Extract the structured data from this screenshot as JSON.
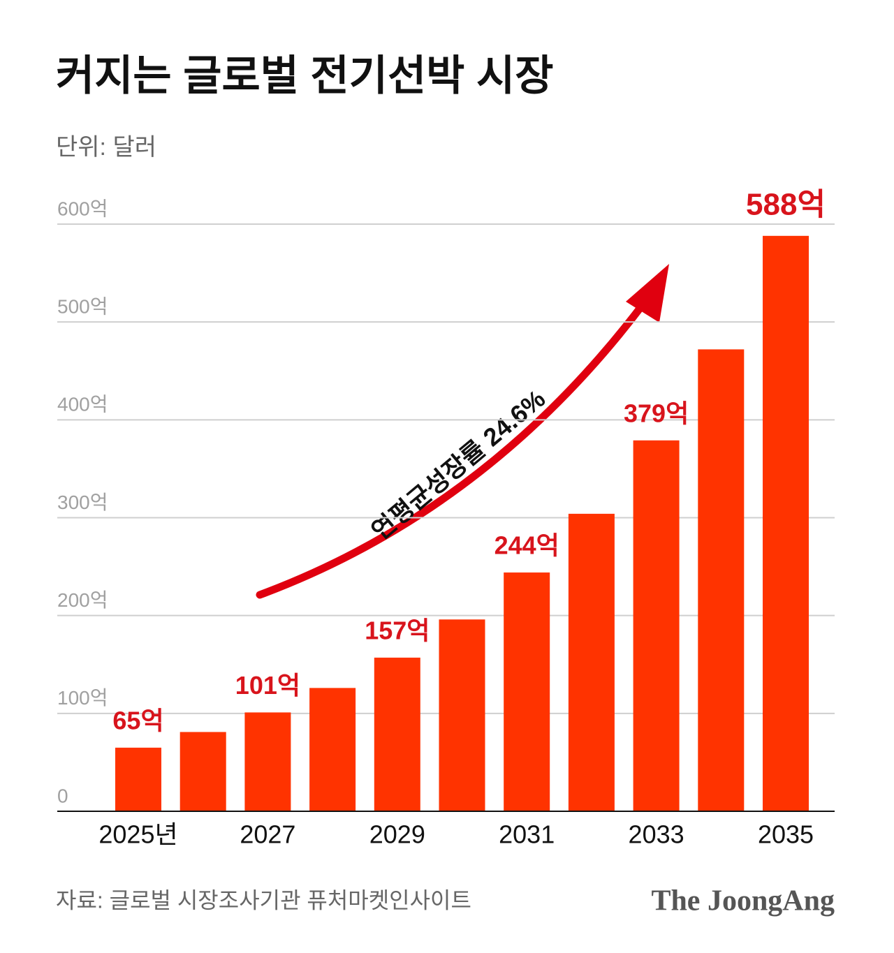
{
  "chart_data": {
    "type": "bar",
    "title": "커지는 글로벌 전기선박 시장",
    "subtitle": "단위: 달러",
    "annotation": "연평균성장률 24.6%",
    "source": "자료: 글로벌 시장조사기관 퓨처마켓인사이트",
    "brand": "The JoongAng",
    "categories": [
      "2025년",
      null,
      "2027",
      null,
      "2029",
      null,
      "2031",
      null,
      "2033",
      null,
      "2035"
    ],
    "values": [
      65,
      81,
      101,
      126,
      157,
      196,
      244,
      304,
      379,
      472,
      588
    ],
    "value_labels": [
      "65억",
      null,
      "101억",
      null,
      "157억",
      null,
      "244억",
      null,
      "379억",
      null,
      "588억"
    ],
    "color": "#ff3300",
    "label_color": "#d8141c",
    "ylim": [
      0,
      600
    ],
    "yticks": [
      0,
      {
        "value": 100,
        "label": "100억"
      },
      {
        "value": 200,
        "label": "200억"
      },
      {
        "value": 300,
        "label": "300억"
      },
      {
        "value": 400,
        "label": "400억"
      },
      {
        "value": 500,
        "label": "500억"
      },
      {
        "value": 600,
        "label": "600억"
      }
    ],
    "grid": true
  }
}
